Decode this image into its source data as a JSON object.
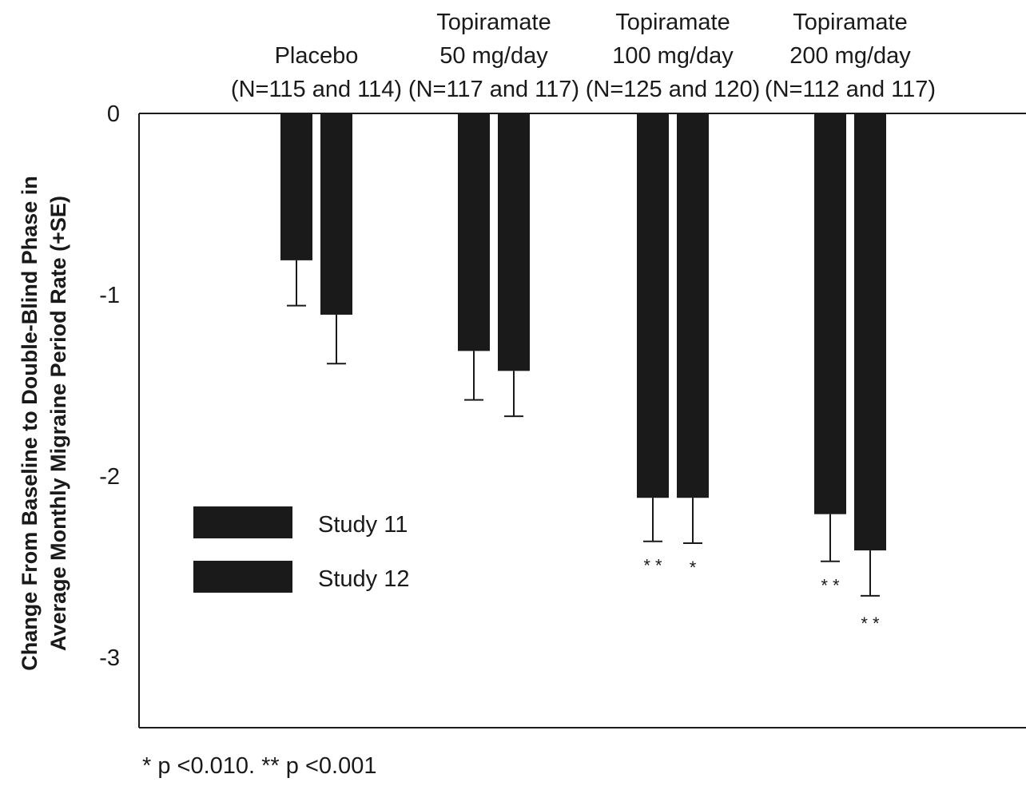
{
  "chart_data": {
    "type": "bar",
    "categories": [
      [
        "Placebo",
        "(N=115 and 114)"
      ],
      [
        "Topiramate",
        "50 mg/day",
        "(N=117 and 117)"
      ],
      [
        "Topiramate",
        "100 mg/day",
        "(N=125 and 120)"
      ],
      [
        "Topiramate",
        "200 mg/day",
        "(N=112 and 117)"
      ]
    ],
    "series": [
      {
        "name": "Study 11",
        "values": [
          -0.81,
          -1.31,
          -2.12,
          -2.21
        ],
        "se": [
          0.25,
          0.27,
          0.24,
          0.26
        ],
        "significance": [
          "",
          "",
          "* *",
          "* *"
        ]
      },
      {
        "name": "Study 12",
        "values": [
          -1.11,
          -1.42,
          -2.12,
          -2.41
        ],
        "se": [
          0.27,
          0.25,
          0.25,
          0.25
        ],
        "significance": [
          "",
          "",
          "*",
          "* *"
        ]
      }
    ],
    "ylabel": [
      "Change From Baseline to Double-Blind Phase in",
      "Average Monthly Migraine Period Rate (+SE)"
    ],
    "yticks": [
      0,
      -1,
      -2,
      -3
    ],
    "ytick_labels": [
      "0",
      "-1",
      "-2",
      "-3"
    ],
    "ylim": [
      -3.4,
      0
    ],
    "footnote": "* p <0.010. ** p <0.001",
    "legend": {
      "placement": "lower-left",
      "items": [
        "Study 11",
        "Study 12"
      ]
    },
    "bar_color": "#1a1a1a"
  }
}
